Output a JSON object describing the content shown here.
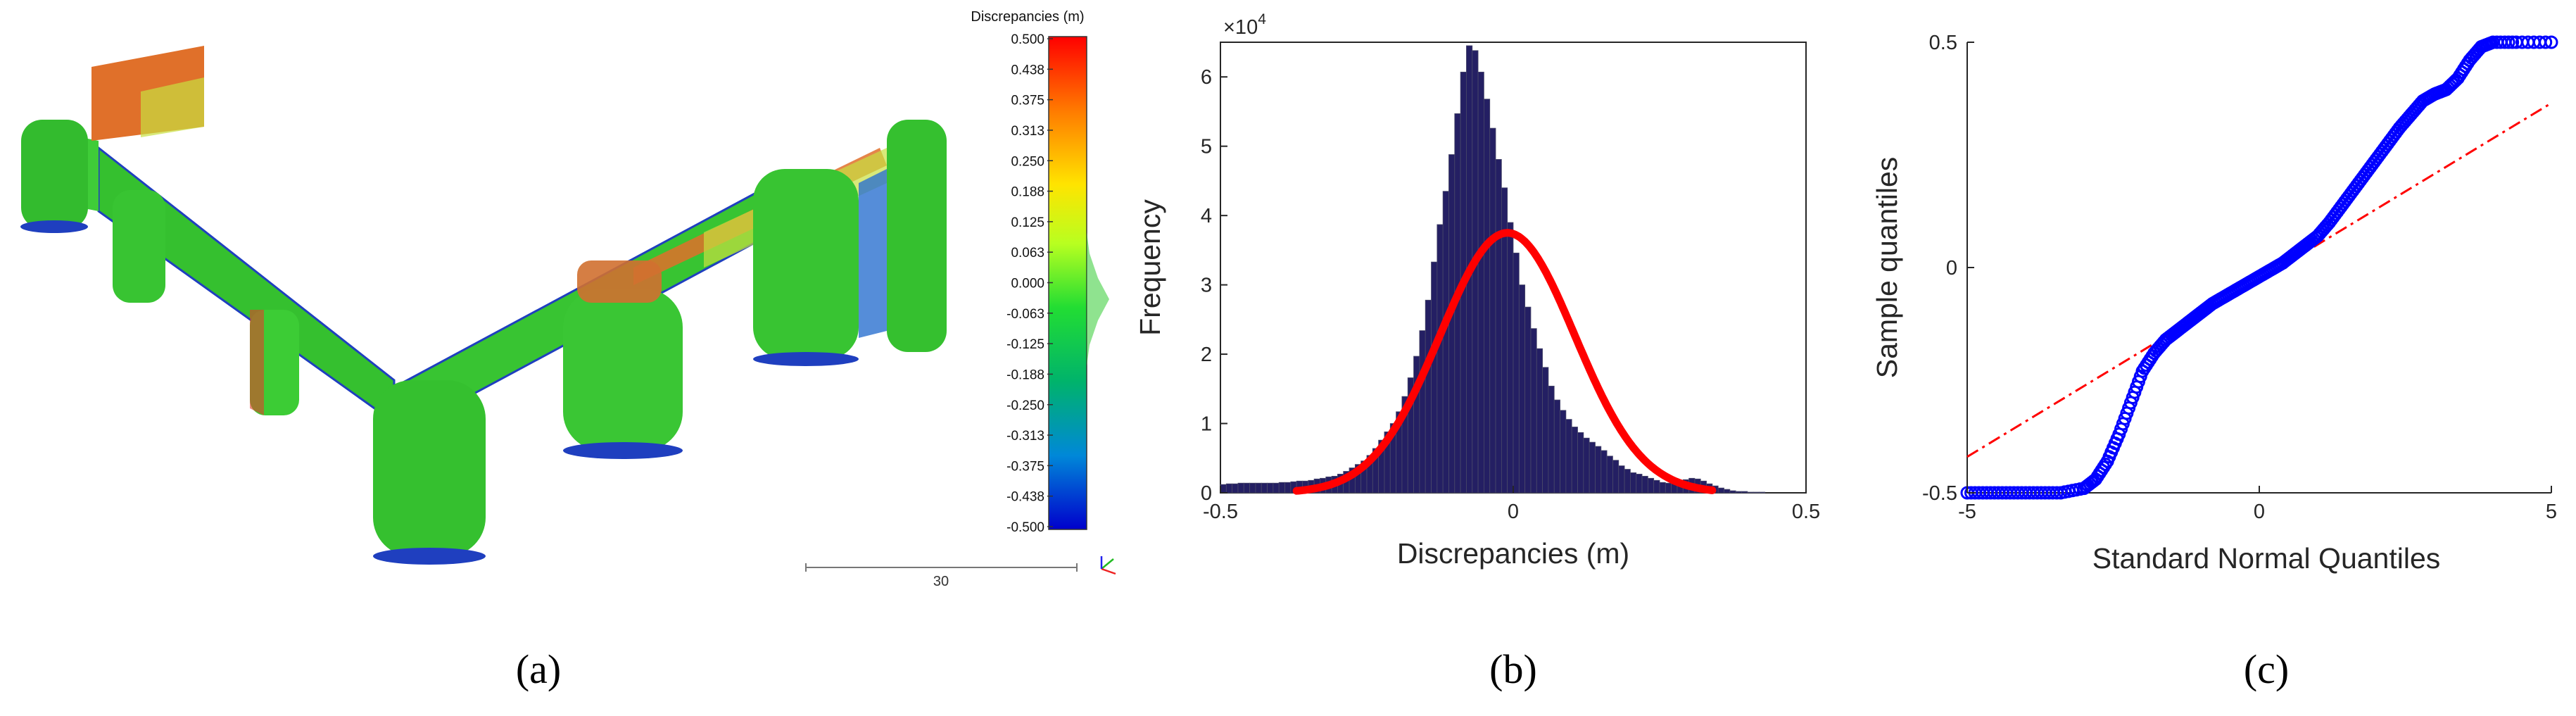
{
  "colors": {
    "hist_bar": "#241f63",
    "hist_edge": "#4a4a6a",
    "normal_fit": "#ff0000",
    "qq_points": "#0000ff",
    "qq_ref": "#ff0000",
    "axis": "#262626",
    "cloud_green": "#39c834",
    "cloud_blue": "#1f3fbf",
    "cloud_orange": "#e0702a",
    "cloud_yellow": "#c8e040"
  },
  "panels": {
    "a": {
      "caption": "(a)",
      "colorbar": {
        "title": "Discrepancies (m)",
        "ticks": [
          "0.500",
          "0.438",
          "0.375",
          "0.313",
          "0.250",
          "0.188",
          "0.125",
          "0.063",
          "0.000",
          "-0.063",
          "-0.125",
          "-0.188",
          "-0.250",
          "-0.313",
          "-0.375",
          "-0.438",
          "-0.500"
        ],
        "colors": [
          "#ff0000",
          "#ff6600",
          "#ffaa00",
          "#ffee00",
          "#ccff00",
          "#44ee22",
          "#00cc66",
          "#00aacc",
          "#0066ff",
          "#0000cc"
        ]
      },
      "scale_bar_label": "30",
      "image_description_icon": "axis-triad-icon"
    },
    "b": {
      "caption": "(b)"
    },
    "c": {
      "caption": "(c)"
    }
  },
  "chart_data": [
    {
      "type": "bar",
      "panel": "b",
      "title": "",
      "xlabel": "Discrepancies (m)",
      "ylabel": "Frequency",
      "y_exponent_label": "×10",
      "y_exponent_power": "4",
      "xlim": [
        -0.5,
        0.5
      ],
      "ylim": [
        0,
        6.5
      ],
      "xticks": [
        -0.5,
        0,
        0.5
      ],
      "xtick_labels": [
        "-0.5",
        "0",
        "0.5"
      ],
      "yticks": [
        0,
        1,
        2,
        3,
        4,
        5,
        6
      ],
      "ytick_labels": [
        "0",
        "1",
        "2",
        "3",
        "4",
        "5",
        "6"
      ],
      "bin_width": 0.01,
      "bin_centers": [
        -0.495,
        -0.485,
        -0.475,
        -0.465,
        -0.455,
        -0.445,
        -0.435,
        -0.425,
        -0.415,
        -0.405,
        -0.395,
        -0.385,
        -0.375,
        -0.365,
        -0.355,
        -0.345,
        -0.335,
        -0.325,
        -0.315,
        -0.305,
        -0.295,
        -0.285,
        -0.275,
        -0.265,
        -0.255,
        -0.245,
        -0.235,
        -0.225,
        -0.215,
        -0.205,
        -0.195,
        -0.185,
        -0.175,
        -0.165,
        -0.155,
        -0.145,
        -0.135,
        -0.125,
        -0.115,
        -0.105,
        -0.095,
        -0.085,
        -0.075,
        -0.065,
        -0.055,
        -0.045,
        -0.035,
        -0.025,
        -0.015,
        -0.005,
        0.005,
        0.015,
        0.025,
        0.035,
        0.045,
        0.055,
        0.065,
        0.075,
        0.085,
        0.095,
        0.105,
        0.115,
        0.125,
        0.135,
        0.145,
        0.155,
        0.165,
        0.175,
        0.185,
        0.195,
        0.205,
        0.215,
        0.225,
        0.235,
        0.245,
        0.255,
        0.265,
        0.275,
        0.285,
        0.295,
        0.305,
        0.315,
        0.325,
        0.335,
        0.345,
        0.355,
        0.365,
        0.375,
        0.385,
        0.395,
        0.405,
        0.415,
        0.425,
        0.435,
        0.445,
        0.455,
        0.465,
        0.475,
        0.485,
        0.495
      ],
      "values": [
        0.12,
        0.13,
        0.13,
        0.14,
        0.14,
        0.14,
        0.14,
        0.14,
        0.14,
        0.14,
        0.15,
        0.15,
        0.16,
        0.17,
        0.17,
        0.18,
        0.2,
        0.21,
        0.23,
        0.24,
        0.27,
        0.31,
        0.36,
        0.41,
        0.46,
        0.54,
        0.64,
        0.76,
        0.88,
        1.0,
        1.17,
        1.39,
        1.66,
        1.97,
        2.34,
        2.78,
        3.33,
        3.87,
        4.35,
        4.88,
        5.47,
        6.07,
        6.45,
        6.38,
        6.07,
        5.68,
        5.26,
        4.81,
        4.4,
        3.9,
        3.46,
        3.0,
        2.68,
        2.37,
        2.08,
        1.81,
        1.54,
        1.34,
        1.19,
        1.06,
        0.95,
        0.87,
        0.79,
        0.73,
        0.67,
        0.61,
        0.53,
        0.47,
        0.39,
        0.34,
        0.29,
        0.27,
        0.24,
        0.21,
        0.18,
        0.15,
        0.14,
        0.14,
        0.15,
        0.19,
        0.21,
        0.2,
        0.17,
        0.13,
        0.1,
        0.07,
        0.05,
        0.03,
        0.02,
        0.02,
        0.01,
        0.01,
        0.01,
        0.0,
        0.0,
        0.0,
        0.0,
        0.0,
        0.0,
        0.0
      ],
      "series": [
        {
          "name": "normal fit",
          "type": "line",
          "mean": -0.01,
          "std": 0.115,
          "peak": 3.75,
          "x_range": [
            -0.37,
            0.34
          ]
        }
      ]
    },
    {
      "type": "scatter",
      "panel": "c",
      "title": "",
      "xlabel": "Standard Normal Quantiles",
      "ylabel": "Sample quantiles",
      "xlim": [
        -5,
        5
      ],
      "ylim": [
        -0.5,
        0.5
      ],
      "xticks": [
        -5,
        0,
        5
      ],
      "xtick_labels": [
        "-5",
        "0",
        "5"
      ],
      "yticks": [
        -0.5,
        0,
        0.5
      ],
      "ytick_labels": [
        "-0.5",
        "0",
        "0.5"
      ],
      "series": [
        {
          "name": "sample quantiles",
          "x": [
            -5.0,
            -4.6,
            -4.2,
            -3.8,
            -3.4,
            -3.0,
            -2.8,
            -2.6,
            -2.4,
            -2.2,
            -2.0,
            -1.8,
            -1.6,
            -1.4,
            -1.2,
            -1.0,
            -0.8,
            -0.6,
            -0.4,
            -0.2,
            0.0,
            0.2,
            0.4,
            0.6,
            0.8,
            1.0,
            1.2,
            1.4,
            1.6,
            1.8,
            2.0,
            2.2,
            2.4,
            2.6,
            2.8,
            3.0,
            3.2,
            3.4,
            3.6,
            3.8,
            4.0,
            4.4,
            5.0
          ],
          "y": [
            -0.5,
            -0.5,
            -0.5,
            -0.5,
            -0.5,
            -0.49,
            -0.47,
            -0.43,
            -0.37,
            -0.3,
            -0.23,
            -0.19,
            -0.16,
            -0.14,
            -0.12,
            -0.1,
            -0.08,
            -0.065,
            -0.05,
            -0.035,
            -0.02,
            -0.005,
            0.01,
            0.03,
            0.05,
            0.07,
            0.1,
            0.135,
            0.17,
            0.205,
            0.24,
            0.275,
            0.31,
            0.34,
            0.37,
            0.385,
            0.395,
            0.42,
            0.46,
            0.49,
            0.5,
            0.5,
            0.5
          ]
        },
        {
          "name": "reference line",
          "type": "line",
          "x": [
            -5,
            5
          ],
          "y": [
            -0.42,
            0.365
          ]
        }
      ]
    }
  ]
}
